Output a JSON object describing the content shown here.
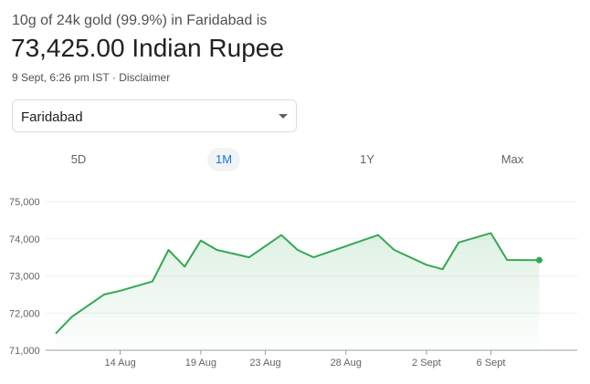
{
  "header": {
    "subtitle": "10g of 24k gold (99.9%) in Faridabad is",
    "price": "73,425.00 Indian Rupee",
    "timestamp": "9 Sept, 6:26 pm IST",
    "separator": " · ",
    "disclaimer": "Disclaimer"
  },
  "location_select": {
    "value": "Faridabad",
    "icon": "chevron-down-icon"
  },
  "tabs": [
    {
      "label": "5D",
      "active": false
    },
    {
      "label": "1M",
      "active": true
    },
    {
      "label": "1Y",
      "active": false
    },
    {
      "label": "Max",
      "active": false
    }
  ],
  "colors": {
    "line": "#34a853",
    "active_tab_text": "#1a73e8",
    "active_tab_bg": "#f1f3f4"
  },
  "chart_data": {
    "type": "area",
    "title": "",
    "xlabel": "",
    "ylabel": "",
    "ylim": [
      71000,
      75000
    ],
    "y_ticks": [
      "75,000",
      "74,000",
      "73,000",
      "72,000",
      "71,000"
    ],
    "y_tick_values": [
      75000,
      74000,
      73000,
      72000,
      71000
    ],
    "x_tick_labels": [
      "14 Aug",
      "19 Aug",
      "23 Aug",
      "28 Aug",
      "2 Sept",
      "6 Sept"
    ],
    "x_tick_dates": [
      "2024-08-14",
      "2024-08-19",
      "2024-08-23",
      "2024-08-28",
      "2024-09-02",
      "2024-09-06"
    ],
    "grid": true,
    "series": [
      {
        "x": [
          "2024-08-10",
          "2024-08-11",
          "2024-08-13",
          "2024-08-14",
          "2024-08-16",
          "2024-08-17",
          "2024-08-18",
          "2024-08-19",
          "2024-08-20",
          "2024-08-21",
          "2024-08-22",
          "2024-08-24",
          "2024-08-25",
          "2024-08-26",
          "2024-08-28",
          "2024-08-30",
          "2024-08-31",
          "2024-09-02",
          "2024-09-03",
          "2024-09-04",
          "2024-09-06",
          "2024-09-07",
          "2024-09-09"
        ],
        "y": [
          71450,
          71900,
          72500,
          72600,
          72850,
          73700,
          73250,
          73950,
          73700,
          73600,
          73500,
          74100,
          73700,
          73500,
          73800,
          74100,
          73700,
          73300,
          73180,
          73900,
          74150,
          73430,
          73425
        ]
      }
    ]
  }
}
